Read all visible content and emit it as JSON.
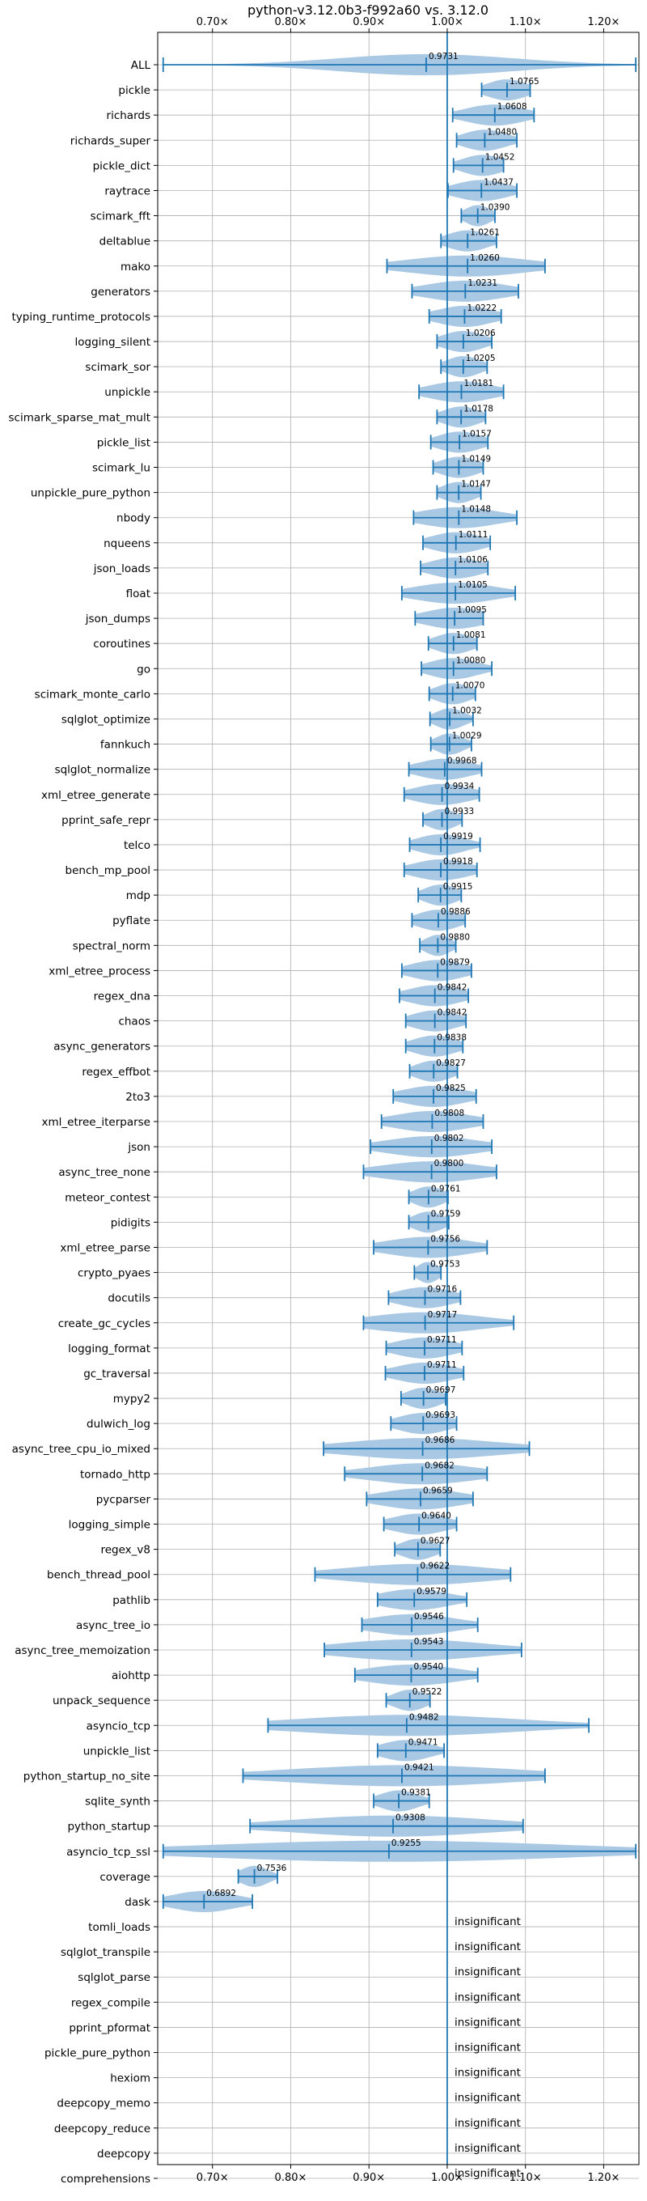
{
  "chart_data": {
    "type": "violin",
    "title": "python-v3.12.0b3-f992a60 vs. 3.12.0",
    "xlabel": "",
    "ylabel": "",
    "xlim": [
      0.63,
      1.245
    ],
    "x_ticks": [
      0.7,
      0.8,
      0.9,
      1.0,
      1.1,
      1.2
    ],
    "x_tick_labels": [
      "0.70×",
      "0.80×",
      "0.90×",
      "1.00×",
      "1.10×",
      "1.20×"
    ],
    "reference_line": 1.0,
    "grid": true,
    "colors": {
      "violin": "#a8c8e4",
      "errorbar": "#1f77b4",
      "reference": "#1f77b4",
      "grid": "#b0b0b0"
    },
    "categories": [
      {
        "name": "ALL",
        "mean": 0.9731,
        "label": "0.9731",
        "min": 0.637,
        "max": 1.241,
        "q1": 0.897,
        "q3": 1.048
      },
      {
        "name": "pickle",
        "mean": 1.0765,
        "label": "1.0765",
        "min": 1.044,
        "max": 1.106,
        "q1": 1.061,
        "q3": 1.095
      },
      {
        "name": "richards",
        "mean": 1.0608,
        "label": "1.0608",
        "min": 1.007,
        "max": 1.111,
        "q1": 1.036,
        "q3": 1.086
      },
      {
        "name": "richards_super",
        "mean": 1.048,
        "label": "1.0480",
        "min": 1.012,
        "max": 1.089,
        "q1": 1.031,
        "q3": 1.068
      },
      {
        "name": "pickle_dict",
        "mean": 1.0452,
        "label": "1.0452",
        "min": 1.008,
        "max": 1.072,
        "q1": 1.027,
        "q3": 1.062
      },
      {
        "name": "raytrace",
        "mean": 1.0437,
        "label": "1.0437",
        "min": 1.001,
        "max": 1.089,
        "q1": 1.021,
        "q3": 1.066
      },
      {
        "name": "scimark_fft",
        "mean": 1.039,
        "label": "1.0390",
        "min": 1.018,
        "max": 1.061,
        "q1": 1.028,
        "q3": 1.05
      },
      {
        "name": "deltablue",
        "mean": 1.0261,
        "label": "1.0261",
        "min": 0.992,
        "max": 1.063,
        "q1": 1.009,
        "q3": 1.044
      },
      {
        "name": "mako",
        "mean": 1.026,
        "label": "1.0260",
        "min": 0.923,
        "max": 1.125,
        "q1": 0.974,
        "q3": 1.076
      },
      {
        "name": "generators",
        "mean": 1.0231,
        "label": "1.0231",
        "min": 0.955,
        "max": 1.091,
        "q1": 0.989,
        "q3": 1.057
      },
      {
        "name": "typing_runtime_protocols",
        "mean": 1.0222,
        "label": "1.0222",
        "min": 0.977,
        "max": 1.069,
        "q1": 0.999,
        "q3": 1.046
      },
      {
        "name": "logging_silent",
        "mean": 1.0206,
        "label": "1.0206",
        "min": 0.987,
        "max": 1.057,
        "q1": 1.004,
        "q3": 1.039
      },
      {
        "name": "scimark_sor",
        "mean": 1.0205,
        "label": "1.0205",
        "min": 0.992,
        "max": 1.051,
        "q1": 1.006,
        "q3": 1.035
      },
      {
        "name": "unpickle",
        "mean": 1.0181,
        "label": "1.0181",
        "min": 0.964,
        "max": 1.072,
        "q1": 0.991,
        "q3": 1.045
      },
      {
        "name": "scimark_sparse_mat_mult",
        "mean": 1.0178,
        "label": "1.0178",
        "min": 0.987,
        "max": 1.049,
        "q1": 1.002,
        "q3": 1.033
      },
      {
        "name": "pickle_list",
        "mean": 1.0157,
        "label": "1.0157",
        "min": 0.979,
        "max": 1.052,
        "q1": 0.997,
        "q3": 1.034
      },
      {
        "name": "scimark_lu",
        "mean": 1.0149,
        "label": "1.0149",
        "min": 0.982,
        "max": 1.046,
        "q1": 0.998,
        "q3": 1.031
      },
      {
        "name": "unpickle_pure_python",
        "mean": 1.0147,
        "label": "1.0147",
        "min": 0.987,
        "max": 1.043,
        "q1": 1.001,
        "q3": 1.029
      },
      {
        "name": "nbody",
        "mean": 1.0148,
        "label": "1.0148",
        "min": 0.957,
        "max": 1.089,
        "q1": 0.986,
        "q3": 1.052
      },
      {
        "name": "nqueens",
        "mean": 1.0111,
        "label": "1.0111",
        "min": 0.969,
        "max": 1.055,
        "q1": 0.99,
        "q3": 1.033
      },
      {
        "name": "json_loads",
        "mean": 1.0106,
        "label": "1.0106",
        "min": 0.966,
        "max": 1.052,
        "q1": 0.988,
        "q3": 1.031
      },
      {
        "name": "float",
        "mean": 1.0105,
        "label": "1.0105",
        "min": 0.942,
        "max": 1.087,
        "q1": 0.976,
        "q3": 1.045
      },
      {
        "name": "json_dumps",
        "mean": 1.0095,
        "label": "1.0095",
        "min": 0.959,
        "max": 1.046,
        "q1": 0.984,
        "q3": 1.035
      },
      {
        "name": "coroutines",
        "mean": 1.0081,
        "label": "1.0081",
        "min": 0.976,
        "max": 1.038,
        "q1": 0.992,
        "q3": 1.024
      },
      {
        "name": "go",
        "mean": 1.008,
        "label": "1.0080",
        "min": 0.967,
        "max": 1.057,
        "q1": 0.987,
        "q3": 1.029
      },
      {
        "name": "scimark_monte_carlo",
        "mean": 1.007,
        "label": "1.0070",
        "min": 0.977,
        "max": 1.036,
        "q1": 0.992,
        "q3": 1.022
      },
      {
        "name": "sqlglot_optimize",
        "mean": 1.0032,
        "label": "1.0032",
        "min": 0.978,
        "max": 1.033,
        "q1": 0.991,
        "q3": 1.016
      },
      {
        "name": "fannkuch",
        "mean": 1.0029,
        "label": "1.0029",
        "min": 0.979,
        "max": 1.031,
        "q1": 0.991,
        "q3": 1.015
      },
      {
        "name": "sqlglot_normalize",
        "mean": 0.9968,
        "label": "0.9968",
        "min": 0.951,
        "max": 1.044,
        "q1": 0.974,
        "q3": 1.02
      },
      {
        "name": "xml_etree_generate",
        "mean": 0.9934,
        "label": "0.9934",
        "min": 0.945,
        "max": 1.041,
        "q1": 0.969,
        "q3": 1.017
      },
      {
        "name": "pprint_safe_repr",
        "mean": 0.9933,
        "label": "0.9933",
        "min": 0.969,
        "max": 1.019,
        "q1": 0.981,
        "q3": 1.006
      },
      {
        "name": "telco",
        "mean": 0.9919,
        "label": "0.9919",
        "min": 0.952,
        "max": 1.042,
        "q1": 0.972,
        "q3": 1.013
      },
      {
        "name": "bench_mp_pool",
        "mean": 0.9918,
        "label": "0.9918",
        "min": 0.945,
        "max": 1.038,
        "q1": 0.968,
        "q3": 1.015
      },
      {
        "name": "mdp",
        "mean": 0.9915,
        "label": "0.9915",
        "min": 0.963,
        "max": 1.018,
        "q1": 0.977,
        "q3": 1.005
      },
      {
        "name": "pyflate",
        "mean": 0.9886,
        "label": "0.9886",
        "min": 0.955,
        "max": 1.023,
        "q1": 0.971,
        "q3": 1.006
      },
      {
        "name": "spectral_norm",
        "mean": 0.988,
        "label": "0.9880",
        "min": 0.965,
        "max": 1.011,
        "q1": 0.977,
        "q3": 0.999
      },
      {
        "name": "xml_etree_process",
        "mean": 0.9879,
        "label": "0.9879",
        "min": 0.942,
        "max": 1.031,
        "q1": 0.964,
        "q3": 1.01
      },
      {
        "name": "regex_dna",
        "mean": 0.9842,
        "label": "0.9842",
        "min": 0.939,
        "max": 1.027,
        "q1": 0.961,
        "q3": 1.006
      },
      {
        "name": "chaos",
        "mean": 0.9842,
        "label": "0.9842",
        "min": 0.947,
        "max": 1.024,
        "q1": 0.965,
        "q3": 1.004
      },
      {
        "name": "async_generators",
        "mean": 0.9838,
        "label": "0.9838",
        "min": 0.947,
        "max": 1.02,
        "q1": 0.965,
        "q3": 1.002
      },
      {
        "name": "regex_effbot",
        "mean": 0.9827,
        "label": "0.9827",
        "min": 0.952,
        "max": 1.013,
        "q1": 0.967,
        "q3": 0.998
      },
      {
        "name": "2to3",
        "mean": 0.9825,
        "label": "0.9825",
        "min": 0.931,
        "max": 1.037,
        "q1": 0.957,
        "q3": 1.01
      },
      {
        "name": "xml_etree_iterparse",
        "mean": 0.9808,
        "label": "0.9808",
        "min": 0.916,
        "max": 1.046,
        "q1": 0.948,
        "q3": 1.013
      },
      {
        "name": "json",
        "mean": 0.9802,
        "label": "0.9802",
        "min": 0.902,
        "max": 1.057,
        "q1": 0.941,
        "q3": 1.019
      },
      {
        "name": "async_tree_none",
        "mean": 0.98,
        "label": "0.9800",
        "min": 0.893,
        "max": 1.063,
        "q1": 0.936,
        "q3": 1.022
      },
      {
        "name": "meteor_contest",
        "mean": 0.9761,
        "label": "0.9761",
        "min": 0.951,
        "max": 1.001,
        "q1": 0.963,
        "q3": 0.989
      },
      {
        "name": "pidigits",
        "mean": 0.9759,
        "label": "0.9759",
        "min": 0.951,
        "max": 1.002,
        "q1": 0.963,
        "q3": 0.989
      },
      {
        "name": "xml_etree_parse",
        "mean": 0.9756,
        "label": "0.9756",
        "min": 0.906,
        "max": 1.051,
        "q1": 0.941,
        "q3": 1.013
      },
      {
        "name": "crypto_pyaes",
        "mean": 0.9753,
        "label": "0.9753",
        "min": 0.958,
        "max": 0.992,
        "q1": 0.966,
        "q3": 0.984
      },
      {
        "name": "docutils",
        "mean": 0.9716,
        "label": "0.9716",
        "min": 0.925,
        "max": 1.017,
        "q1": 0.948,
        "q3": 0.995
      },
      {
        "name": "create_gc_cycles",
        "mean": 0.9717,
        "label": "0.9717",
        "min": 0.893,
        "max": 1.085,
        "q1": 0.932,
        "q3": 1.028
      },
      {
        "name": "logging_format",
        "mean": 0.9711,
        "label": "0.9711",
        "min": 0.922,
        "max": 1.019,
        "q1": 0.946,
        "q3": 0.995
      },
      {
        "name": "gc_traversal",
        "mean": 0.9711,
        "label": "0.9711",
        "min": 0.921,
        "max": 1.021,
        "q1": 0.946,
        "q3": 0.996
      },
      {
        "name": "mypy2",
        "mean": 0.9697,
        "label": "0.9697",
        "min": 0.941,
        "max": 0.998,
        "q1": 0.955,
        "q3": 0.984
      },
      {
        "name": "dulwich_log",
        "mean": 0.9693,
        "label": "0.9693",
        "min": 0.928,
        "max": 1.012,
        "q1": 0.948,
        "q3": 0.991
      },
      {
        "name": "async_tree_cpu_io_mixed",
        "mean": 0.9686,
        "label": "0.9686",
        "min": 0.842,
        "max": 1.105,
        "q1": 0.905,
        "q3": 1.037
      },
      {
        "name": "tornado_http",
        "mean": 0.9682,
        "label": "0.9682",
        "min": 0.869,
        "max": 1.051,
        "q1": 0.918,
        "q3": 1.009
      },
      {
        "name": "pycparser",
        "mean": 0.9659,
        "label": "0.9659",
        "min": 0.897,
        "max": 1.033,
        "q1": 0.931,
        "q3": 0.999
      },
      {
        "name": "logging_simple",
        "mean": 0.964,
        "label": "0.9640",
        "min": 0.919,
        "max": 1.012,
        "q1": 0.941,
        "q3": 0.988
      },
      {
        "name": "regex_v8",
        "mean": 0.9627,
        "label": "0.9627",
        "min": 0.933,
        "max": 0.991,
        "q1": 0.948,
        "q3": 0.977
      },
      {
        "name": "bench_thread_pool",
        "mean": 0.9622,
        "label": "0.9622",
        "min": 0.831,
        "max": 1.081,
        "q1": 0.896,
        "q3": 1.021
      },
      {
        "name": "pathlib",
        "mean": 0.9579,
        "label": "0.9579",
        "min": 0.911,
        "max": 1.025,
        "q1": 0.934,
        "q3": 0.992
      },
      {
        "name": "async_tree_io",
        "mean": 0.9546,
        "label": "0.9546",
        "min": 0.891,
        "max": 1.039,
        "q1": 0.923,
        "q3": 0.997
      },
      {
        "name": "async_tree_memoization",
        "mean": 0.9543,
        "label": "0.9543",
        "min": 0.843,
        "max": 1.095,
        "q1": 0.899,
        "q3": 1.025
      },
      {
        "name": "aiohttp",
        "mean": 0.954,
        "label": "0.9540",
        "min": 0.882,
        "max": 1.039,
        "q1": 0.918,
        "q3": 0.997
      },
      {
        "name": "unpack_sequence",
        "mean": 0.9522,
        "label": "0.9522",
        "min": 0.922,
        "max": 0.978,
        "q1": 0.937,
        "q3": 0.965
      },
      {
        "name": "asyncio_tcp",
        "mean": 0.9482,
        "label": "0.9482",
        "min": 0.771,
        "max": 1.181,
        "q1": 0.857,
        "q3": 1.045
      },
      {
        "name": "unpickle_list",
        "mean": 0.9471,
        "label": "0.9471",
        "min": 0.911,
        "max": 0.996,
        "q1": 0.929,
        "q3": 0.971
      },
      {
        "name": "python_startup_no_site",
        "mean": 0.9421,
        "label": "0.9421",
        "min": 0.739,
        "max": 1.125,
        "q1": 0.838,
        "q3": 1.033
      },
      {
        "name": "sqlite_synth",
        "mean": 0.9381,
        "label": "0.9381",
        "min": 0.906,
        "max": 0.977,
        "q1": 0.922,
        "q3": 0.955
      },
      {
        "name": "python_startup",
        "mean": 0.9308,
        "label": "0.9308",
        "min": 0.748,
        "max": 1.097,
        "q1": 0.839,
        "q3": 1.009
      },
      {
        "name": "asyncio_tcp_ssl",
        "mean": 0.9255,
        "label": "0.9255",
        "min": 0.637,
        "max": 1.241,
        "q1": 0.781,
        "q3": 1.084
      },
      {
        "name": "coverage",
        "mean": 0.7536,
        "label": "0.7536",
        "min": 0.733,
        "max": 0.783,
        "q1": 0.743,
        "q3": 0.767
      },
      {
        "name": "dask",
        "mean": 0.6892,
        "label": "0.6892",
        "min": 0.637,
        "max": 0.751,
        "q1": 0.662,
        "q3": 0.718
      },
      {
        "name": "tomli_loads",
        "insignificant": true,
        "label": "insignificant"
      },
      {
        "name": "sqlglot_transpile",
        "insignificant": true,
        "label": "insignificant"
      },
      {
        "name": "sqlglot_parse",
        "insignificant": true,
        "label": "insignificant"
      },
      {
        "name": "regex_compile",
        "insignificant": true,
        "label": "insignificant"
      },
      {
        "name": "pprint_pformat",
        "insignificant": true,
        "label": "insignificant"
      },
      {
        "name": "pickle_pure_python",
        "insignificant": true,
        "label": "insignificant"
      },
      {
        "name": "hexiom",
        "insignificant": true,
        "label": "insignificant"
      },
      {
        "name": "deepcopy_memo",
        "insignificant": true,
        "label": "insignificant"
      },
      {
        "name": "deepcopy_reduce",
        "insignificant": true,
        "label": "insignificant"
      },
      {
        "name": "deepcopy",
        "insignificant": true,
        "label": "insignificant"
      },
      {
        "name": "comprehensions",
        "insignificant": true,
        "label": "insignificant"
      }
    ]
  }
}
